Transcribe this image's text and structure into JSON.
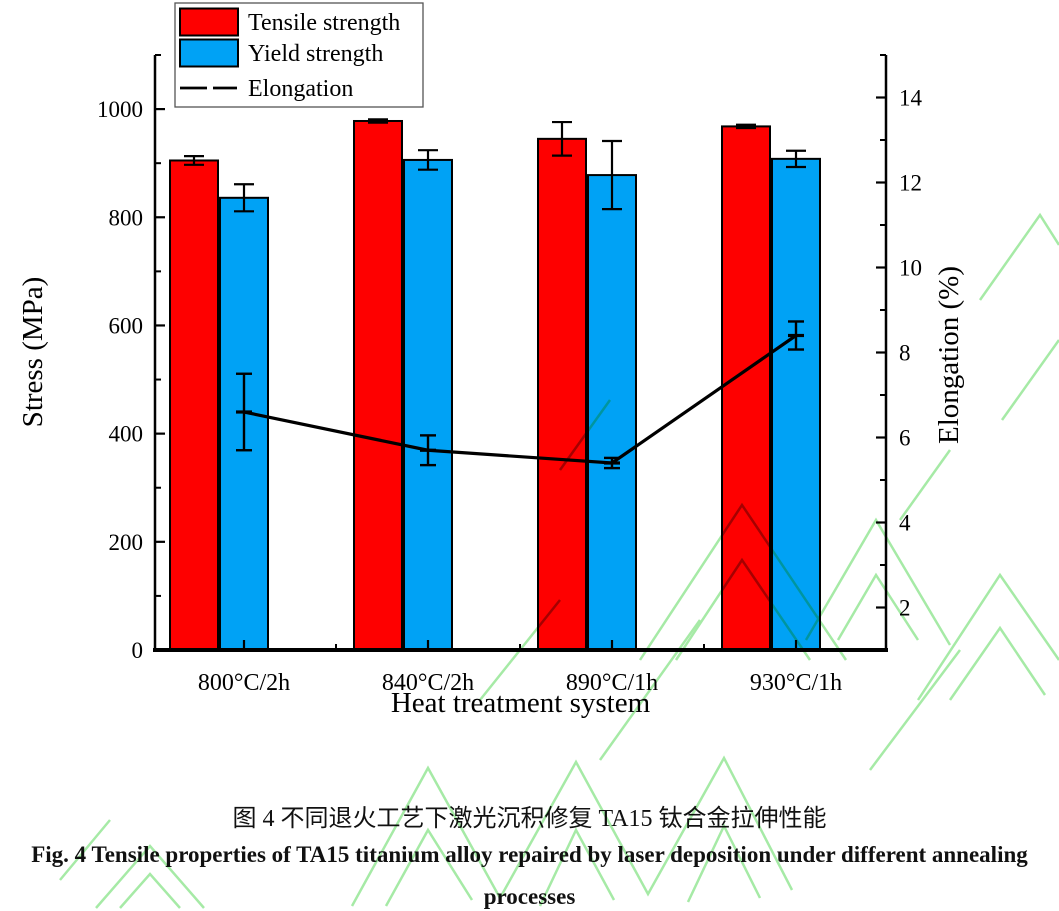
{
  "figure": {
    "captions": {
      "chinese": "图 4  不同退火工艺下激光沉积修复 TA15 钛合金拉伸性能",
      "english_line1": "Fig. 4 Tensile properties of TA15 titanium alloy repaired by laser deposition under different annealing",
      "english_line2": "processes"
    }
  },
  "chart_data": {
    "type": "bar",
    "subtype": "grouped-bars-with-line-dual-axis",
    "title": "",
    "categories": [
      "800°C/2h",
      "840°C/2h",
      "890°C/1h",
      "930°C/1h"
    ],
    "x_axis": {
      "label": "Heat treatment system"
    },
    "left_axis": {
      "label": "Stress (MPa)",
      "min": 0,
      "max": 1100,
      "major_ticks": [
        0,
        200,
        400,
        600,
        800,
        1000
      ],
      "minor_step": 100
    },
    "right_axis": {
      "label": "Elongation (%)",
      "min": 1,
      "max": 15,
      "major_ticks": [
        2,
        4,
        6,
        8,
        10,
        12,
        14
      ],
      "minor_step": 1
    },
    "series": [
      {
        "name": "Tensile strength",
        "type": "bar",
        "axis": "left",
        "color": "#fe0000",
        "values": [
          905,
          978,
          945,
          968
        ],
        "errors": [
          8,
          3,
          31,
          3
        ]
      },
      {
        "name": "Yield strength",
        "type": "bar",
        "axis": "left",
        "color": "#00a2f5",
        "values": [
          836,
          906,
          878,
          908
        ],
        "errors": [
          25,
          18,
          63,
          15
        ]
      },
      {
        "name": "Elongation",
        "type": "line",
        "axis": "right",
        "color": "#000000",
        "values": [
          6.6,
          5.7,
          5.4,
          8.4
        ],
        "errors": [
          0.9,
          0.35,
          0.12,
          0.33
        ]
      }
    ],
    "legend": {
      "position": "top-left",
      "entries": [
        "Tensile strength",
        "Yield strength",
        "Elongation"
      ]
    },
    "grid": false,
    "colors": {
      "axis": "#000000",
      "watermark": "#9ce89c"
    }
  }
}
